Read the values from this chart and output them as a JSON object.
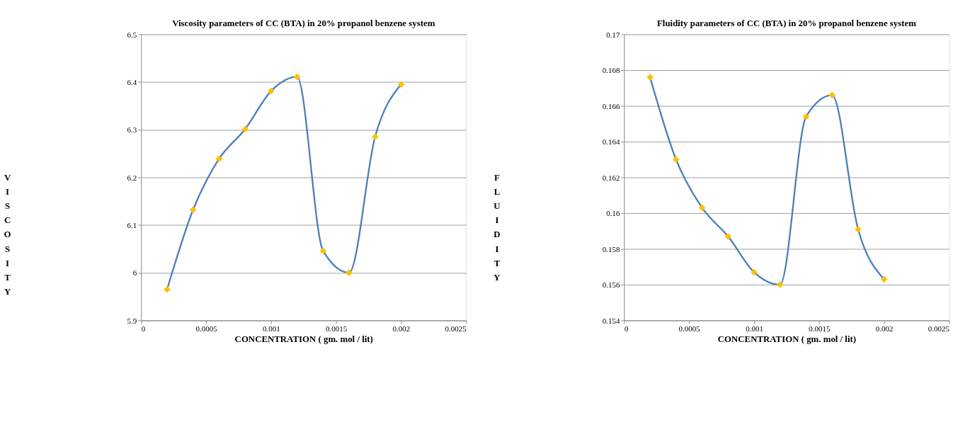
{
  "chart_data": [
    {
      "type": "line",
      "title": "Viscosity parameters of CC (BTA) in 20% propanol benzene system",
      "xlabel": "CONCENTRATION ( gm. mol / lit)",
      "ylabel": "VISCOSITY",
      "x": [
        0.0002,
        0.0004,
        0.0006,
        0.0008,
        0.001,
        0.0012,
        0.0014,
        0.0016,
        0.0018,
        0.002
      ],
      "series": [
        {
          "color": "#4a7ebb",
          "values": [
            5.965,
            6.132,
            6.239,
            6.301,
            6.381,
            6.411,
            6.046,
            6.0,
            6.285,
            6.395
          ]
        }
      ],
      "xlim": [
        0,
        0.0025
      ],
      "xticks": [
        0,
        0.0005,
        0.001,
        0.0015,
        0.002,
        0.0025
      ],
      "ylim": [
        5.9,
        6.5
      ],
      "yticks": [
        5.9,
        6,
        6.1,
        6.2,
        6.3,
        6.4,
        6.5
      ],
      "grid": "y",
      "marker": "diamond",
      "line_style": "solid"
    },
    {
      "type": "line",
      "title": "Fluidity parameters of CC (BTA) in 20% propanol benzene system",
      "xlabel": "CONCENTRATION ( gm. mol / lit)",
      "ylabel": "FLUIDITY",
      "x": [
        0.0002,
        0.0004,
        0.0006,
        0.0008,
        0.001,
        0.0012,
        0.0014,
        0.0016,
        0.0018,
        0.002
      ],
      "series": [
        {
          "color": "#4a7ebb",
          "values": [
            0.1676,
            0.163,
            0.1603,
            0.1587,
            0.1567,
            0.156,
            0.1654,
            0.1666,
            0.1591,
            0.1563
          ]
        }
      ],
      "xlim": [
        0,
        0.0025
      ],
      "xticks": [
        0,
        0.0005,
        0.001,
        0.0015,
        0.002,
        0.0025
      ],
      "ylim": [
        0.154,
        0.17
      ],
      "yticks": [
        0.154,
        0.156,
        0.158,
        0.16,
        0.162,
        0.164,
        0.166,
        0.168,
        0.17
      ],
      "grid": "y",
      "marker": "diamond",
      "line_style": "solid"
    }
  ]
}
